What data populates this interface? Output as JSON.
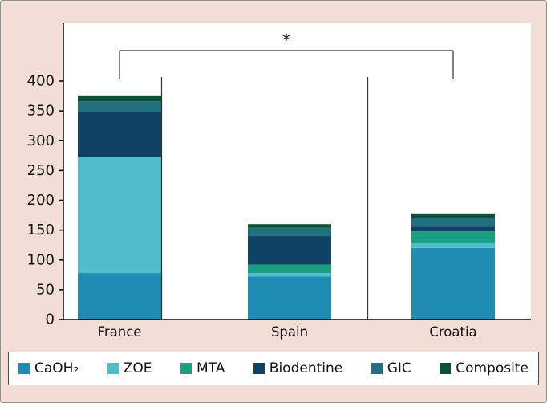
{
  "figure": {
    "background": "#f3ded6",
    "plot_background": "#ffffff",
    "axis_color": "#000000",
    "text_color": "#111111"
  },
  "chart_data": {
    "type": "bar",
    "stacked": true,
    "title": "",
    "xlabel": "",
    "ylabel": "",
    "categories": [
      "France",
      "Spain",
      "Croatia"
    ],
    "series": [
      {
        "name": "CaOH₂",
        "color": "#1e8cb4",
        "values": [
          78,
          72,
          120
        ]
      },
      {
        "name": "ZOE",
        "color": "#4fbdca",
        "values": [
          195,
          6,
          8
        ]
      },
      {
        "name": "MTA",
        "color": "#17a081",
        "values": [
          0,
          14,
          20
        ]
      },
      {
        "name": "Biodentine",
        "color": "#0f4365",
        "values": [
          75,
          48,
          8
        ]
      },
      {
        "name": "GIC",
        "color": "#20707f",
        "values": [
          18,
          14,
          14
        ]
      },
      {
        "name": "Composite",
        "color": "#0f5137",
        "values": [
          10,
          6,
          8
        ]
      }
    ],
    "ylim": [
      0,
      400
    ],
    "yticks": [
      0,
      50,
      100,
      150,
      200,
      250,
      300,
      350,
      400
    ],
    "grid": false,
    "legend_position": "bottom",
    "annotations": [
      {
        "type": "significance-bracket",
        "text": "*",
        "from": "France",
        "to": "Croatia"
      }
    ]
  }
}
